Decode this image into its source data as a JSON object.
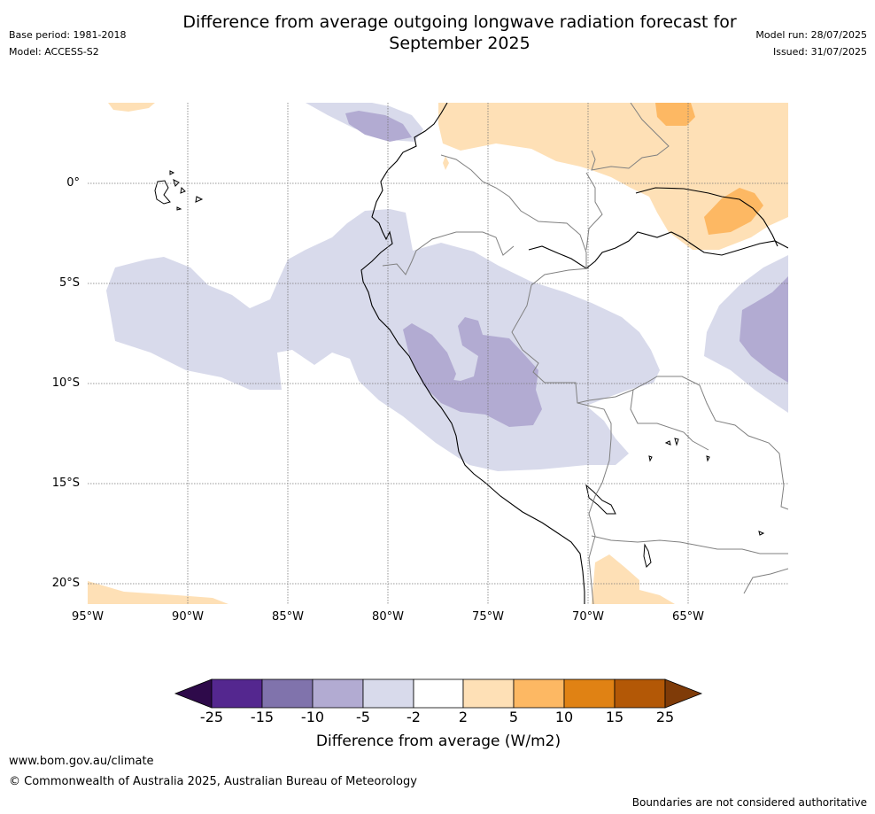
{
  "header": {
    "title_line1": "Difference from average outgoing longwave radiation forecast for",
    "title_line2": "September 2025",
    "base_period": "Base period: 1981-2018",
    "model": "Model: ACCESS-S2",
    "model_run": "Model run: 28/07/2025",
    "issued": "Issued: 31/07/2025"
  },
  "map": {
    "lat_labels": [
      "0°",
      "5°S",
      "10°S",
      "15°S",
      "20°S"
    ],
    "lon_labels": [
      "95°W",
      "90°W",
      "85°W",
      "80°W",
      "75°W",
      "70°W",
      "65°W"
    ],
    "lon_range": [
      -95,
      -60
    ],
    "lat_range": [
      -21,
      4
    ]
  },
  "colorbar": {
    "ticks": [
      "-25",
      "-15",
      "-10",
      "-5",
      "-2",
      "2",
      "5",
      "10",
      "15",
      "25"
    ],
    "colors": [
      "#2e0a4a",
      "#54278f",
      "#8073ac",
      "#b2abd2",
      "#d8daeb",
      "#ffffff",
      "#fee0b6",
      "#fdb863",
      "#e08214",
      "#b35806",
      "#7f3b08"
    ],
    "label": "Difference from average (W/m2)"
  },
  "footer": {
    "website": "www.bom.gov.au/climate",
    "copyright": "© Commonwealth of Australia 2025, Australian Bureau of Meteorology",
    "disclaimer": "Boundaries are not considered authoritative"
  }
}
